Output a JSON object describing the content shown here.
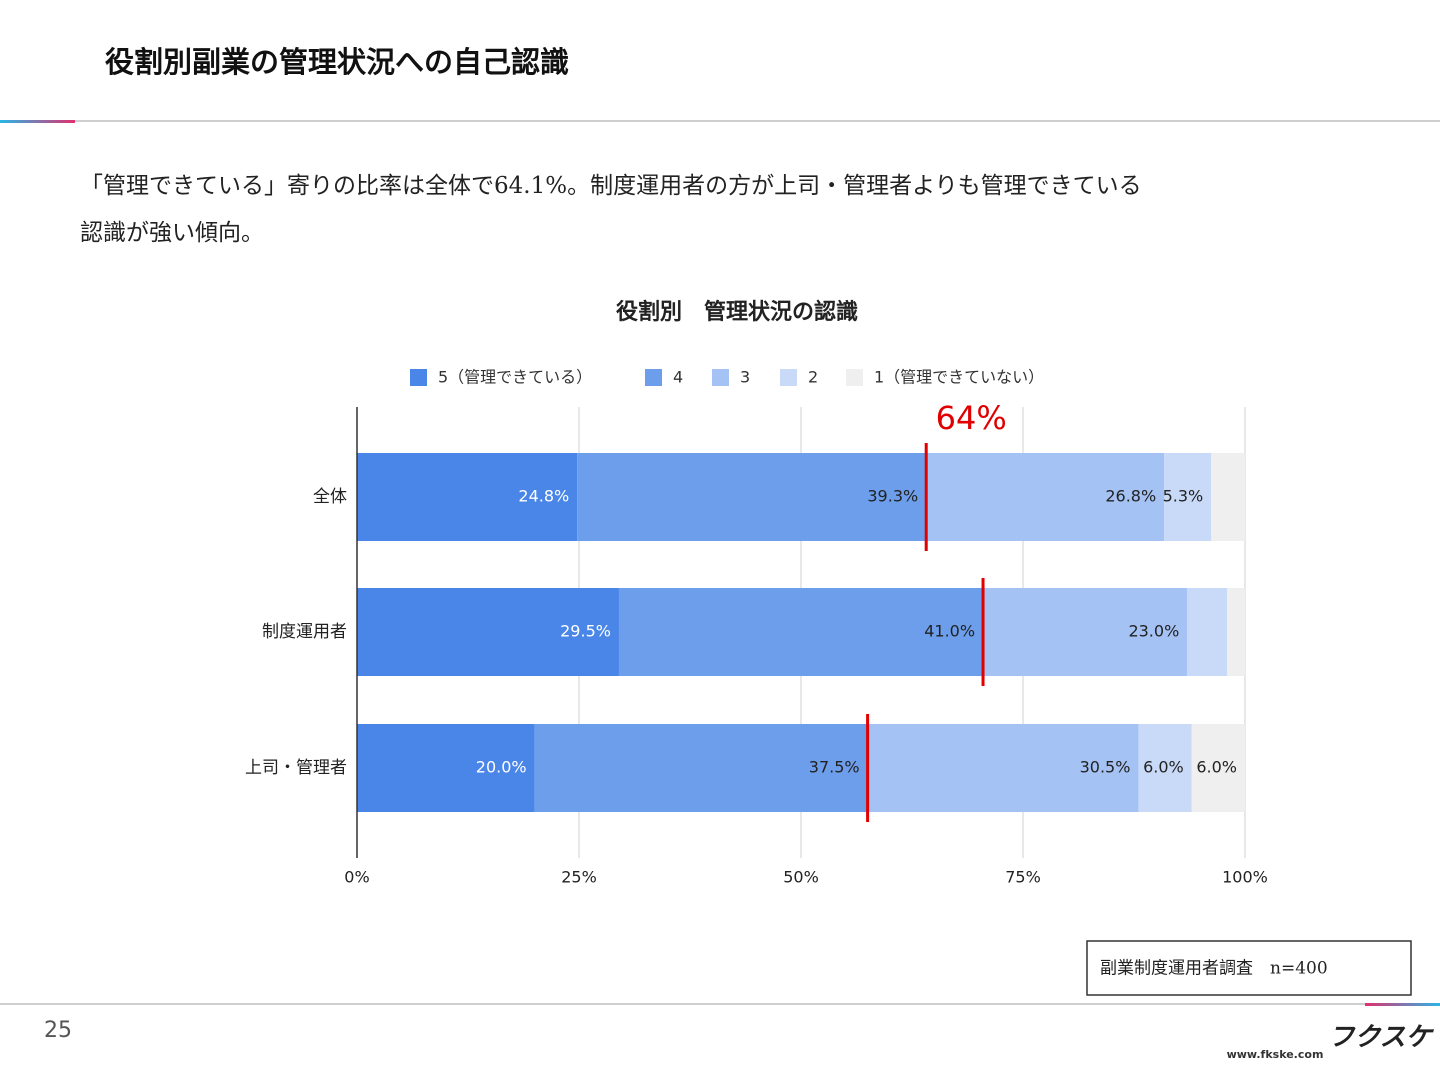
{
  "header": {
    "title": "役割別副業の管理状況への自己認識"
  },
  "body_lines": [
    "「管理できている」寄りの比率は全体で64.1%。制度運用者の方が上司・管理者よりも管理できている",
    "認識が強い傾向。"
  ],
  "chart_data": {
    "type": "stacked-barh",
    "title": "役割別　管理状況の認識",
    "categories": [
      "全体",
      "制度運用者",
      "上司・管理者"
    ],
    "series": [
      {
        "name": "5（管理できている）",
        "color": "#4a86e8",
        "label_color": "#ffffff",
        "values": [
          24.8,
          29.5,
          20.0
        ],
        "value_labels": [
          "24.8%",
          "29.5%",
          "20.0%"
        ]
      },
      {
        "name": "4",
        "color": "#6d9eeb",
        "label_color": "#222222",
        "values": [
          39.3,
          41.0,
          37.5
        ],
        "value_labels": [
          "39.3%",
          "41.0%",
          "37.5%"
        ]
      },
      {
        "name": "3",
        "color": "#a4c2f4",
        "label_color": "#222222",
        "values": [
          26.8,
          23.0,
          30.5
        ],
        "value_labels": [
          "26.8%",
          "23.0%",
          "30.5%"
        ]
      },
      {
        "name": "2",
        "color": "#c9daf8",
        "label_color": "#222222",
        "values": [
          5.3,
          4.5,
          6.0
        ],
        "value_labels": [
          "5.3%",
          null,
          "6.0%"
        ]
      },
      {
        "name": "1（管理できていない）",
        "color": "#efefef",
        "label_color": "#222222",
        "values": [
          3.8,
          2.0,
          6.0
        ],
        "value_labels": [
          null,
          null,
          "6.0%"
        ]
      }
    ],
    "xlim": [
      0,
      100
    ],
    "xticks": [
      {
        "value": 0,
        "label": "0%"
      },
      {
        "value": 25,
        "label": "25%"
      },
      {
        "value": 50,
        "label": "50%"
      },
      {
        "value": 75,
        "label": "75%"
      },
      {
        "value": 100,
        "label": "100%"
      }
    ],
    "grid": true,
    "legend": "top",
    "annotation": "64%",
    "marker_color": "#e00000"
  },
  "source": "副業制度運用者調査　n=400",
  "footer": {
    "page": "25",
    "logo": "フクスケ",
    "url": "www.fkske.com"
  }
}
